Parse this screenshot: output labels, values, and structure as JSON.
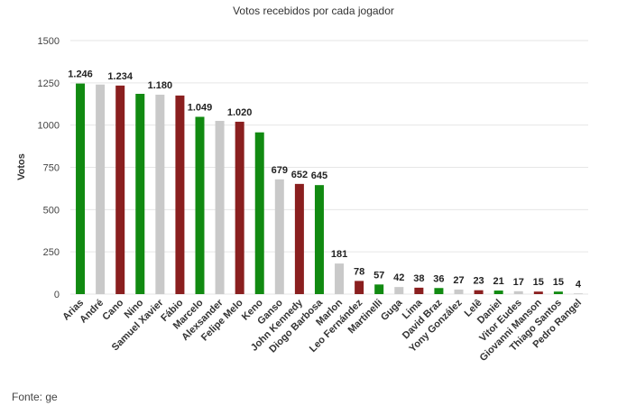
{
  "source_note": "Fonte: ge",
  "colors": {
    "green": "#118a11",
    "gray": "#c9c9c9",
    "red": "#8a1f1f"
  },
  "chart_data": {
    "type": "bar",
    "title": "Votos recebidos por cada jogador",
    "xlabel": "",
    "ylabel": "Votos",
    "ylim": [
      0,
      1500
    ],
    "yticks": [
      0,
      250,
      500,
      750,
      1000,
      1250,
      1500
    ],
    "grid": true,
    "categories": [
      "Arias",
      "André",
      "Cano",
      "Nino",
      "Samuel Xavier",
      "Fábio",
      "Marcelo",
      "Alexsander",
      "Felipe Melo",
      "Keno",
      "Ganso",
      "John Kennedy",
      "Diogo Barbosa",
      "Marlon",
      "Leo Fernández",
      "Martinelli",
      "Guga",
      "Lima",
      "David Braz",
      "Yony González",
      "Lelê",
      "Daniel",
      "Vitor Eudes",
      "Giovanni Manson",
      "Thiago Santos",
      "Pedro Rangel"
    ],
    "values": [
      1246,
      1240,
      1234,
      1185,
      1180,
      1175,
      1049,
      1025,
      1020,
      957,
      679,
      652,
      645,
      181,
      78,
      57,
      42,
      38,
      36,
      27,
      23,
      21,
      17,
      15,
      15,
      4
    ],
    "data_labels": [
      "1.246",
      "",
      "1.234",
      "",
      "1.180",
      "",
      "1.049",
      "",
      "1.020",
      "",
      "679",
      "652",
      "645",
      "181",
      "78",
      "57",
      "42",
      "38",
      "36",
      "27",
      "23",
      "21",
      "17",
      "15",
      "15",
      "4"
    ],
    "bar_colors": [
      "green",
      "gray",
      "red",
      "green",
      "gray",
      "red",
      "green",
      "gray",
      "red",
      "green",
      "gray",
      "red",
      "green",
      "gray",
      "red",
      "green",
      "gray",
      "red",
      "green",
      "gray",
      "red",
      "green",
      "gray",
      "red",
      "green",
      "gray"
    ]
  }
}
